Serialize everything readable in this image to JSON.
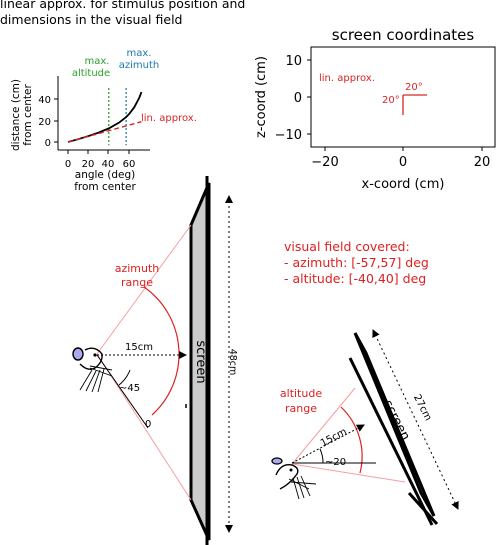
{
  "caption": {
    "line1": "linear approx. for stimulus position and",
    "line2": "dimensions in the visual field"
  },
  "left_plot": {
    "ylabel": [
      "distance (cm)",
      "from center"
    ],
    "xlabel": [
      "angle (deg)",
      "from center"
    ],
    "xticks": [
      "0",
      "20",
      "40",
      "60"
    ],
    "yticks": [
      "0",
      "20",
      "40"
    ],
    "max_altitude_label": [
      "max.",
      "altitude"
    ],
    "max_azimuth_label": [
      "max.",
      "azimuth"
    ],
    "lin_approx_label": "lin. approx.",
    "colors": {
      "altitude": "#2ca02c",
      "azimuth": "#1f77b4",
      "approx": "#d62728"
    }
  },
  "right_plot": {
    "title": "screen coordinates",
    "xlabel": "x-coord (cm)",
    "ylabel": "z-coord (cm)",
    "xticks": [
      "−20",
      "0",
      "20"
    ],
    "yticks": [
      "10",
      "0",
      "−10"
    ],
    "lin_approx_label": "lin. approx.",
    "angle_h": "20°",
    "angle_v": "20°"
  },
  "azimuth_diagram": {
    "range_label": [
      "azimuth",
      "range"
    ],
    "distance": "15cm",
    "angle": "~45",
    "zero": "0",
    "screen_label": "screen",
    "screen_size": "48cm"
  },
  "field_info": {
    "title": "visual field covered:",
    "azimuth": "- azimuth: [-57,57] deg",
    "altitude": "- altitude: [-40,40] deg"
  },
  "altitude_diagram": {
    "range_label": [
      "altitude",
      "range"
    ],
    "distance": "15cm",
    "angle": "~20",
    "screen_label": "screen",
    "screen_size": "27cm"
  },
  "chart_data": {
    "type": "line",
    "xlabel": "angle (deg) from center",
    "ylabel": "distance (cm) from center",
    "xlim": [
      -5,
      75
    ],
    "ylim": [
      -3,
      60
    ],
    "series": [
      {
        "x": [
          0,
          10,
          20,
          30,
          40,
          50,
          57,
          60,
          65,
          70,
          72
        ],
        "values": [
          0,
          2.6,
          5.5,
          8.7,
          12.6,
          17.9,
          23.1,
          26.0,
          32.2,
          41.2,
          46.2
        ]
      },
      {
        "name": "lin. approx.",
        "x": [
          0,
          72
        ],
        "values": [
          0,
          18.8
        ]
      }
    ],
    "markers": [
      {
        "name": "max. altitude",
        "x": 40
      },
      {
        "name": "max. azimuth",
        "x": 57
      }
    ]
  }
}
